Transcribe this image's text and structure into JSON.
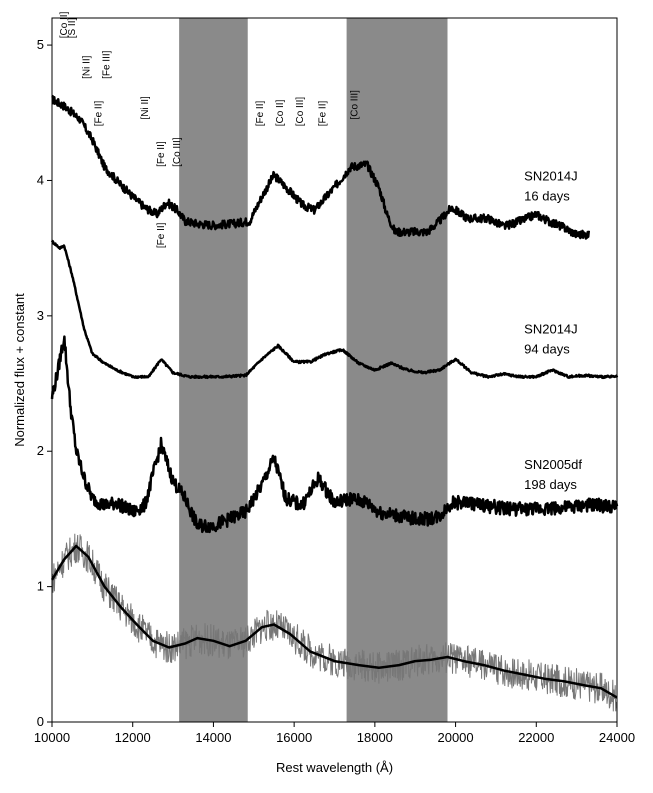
{
  "chart_data": {
    "type": "line",
    "xlabel": "Rest wavelength (Å)",
    "ylabel": "Normalized flux + constant",
    "xlim": [
      10000,
      24000
    ],
    "ylim": [
      0,
      5.2
    ],
    "xticks": [
      10000,
      12000,
      14000,
      16000,
      18000,
      20000,
      22000,
      24000
    ],
    "yticks": [
      0,
      1,
      2,
      3,
      4,
      5
    ],
    "telluric_bands": [
      [
        13150,
        14850
      ],
      [
        17300,
        19800
      ]
    ],
    "series": [
      {
        "name": "",
        "label_lines": [
          "SN2014J",
          "16 days"
        ],
        "label_position": [
          21700,
          4.0
        ],
        "x": [
          10000,
          10300,
          10700,
          11000,
          11300,
          11700,
          12000,
          12300,
          12600,
          12850,
          13100,
          13300,
          13600,
          14000,
          14500,
          14900,
          15200,
          15500,
          15800,
          16200,
          16500,
          17000,
          17400,
          17800,
          18100,
          18300,
          18500,
          19000,
          19300,
          19600,
          19900,
          20300,
          20800,
          21200,
          21600,
          22000,
          22300,
          22700,
          23000,
          23300
        ],
        "y": [
          4.6,
          4.55,
          4.45,
          4.3,
          4.1,
          3.97,
          3.88,
          3.8,
          3.75,
          3.84,
          3.78,
          3.7,
          3.68,
          3.67,
          3.68,
          3.7,
          3.88,
          4.04,
          3.95,
          3.82,
          3.78,
          3.95,
          4.1,
          4.12,
          3.95,
          3.75,
          3.62,
          3.62,
          3.62,
          3.7,
          3.8,
          3.72,
          3.72,
          3.66,
          3.7,
          3.75,
          3.7,
          3.65,
          3.6,
          3.6
        ]
      },
      {
        "name": "",
        "label_lines": [
          "SN2014J",
          "94 days"
        ],
        "label_position": [
          21700,
          2.87
        ],
        "x": [
          10000,
          10200,
          10300,
          10500,
          10800,
          11000,
          11300,
          11600,
          12000,
          12400,
          12700,
          13000,
          13400,
          13800,
          14200,
          14800,
          15200,
          15600,
          16000,
          16400,
          16800,
          17200,
          17600,
          18000,
          18400,
          18800,
          19200,
          19600,
          20000,
          20400,
          20800,
          21200,
          21600,
          22000,
          22400,
          22800,
          23200,
          23600,
          24000
        ],
        "y": [
          3.55,
          3.5,
          3.52,
          3.3,
          2.9,
          2.72,
          2.65,
          2.6,
          2.55,
          2.55,
          2.68,
          2.58,
          2.55,
          2.55,
          2.55,
          2.56,
          2.68,
          2.78,
          2.66,
          2.66,
          2.72,
          2.75,
          2.65,
          2.6,
          2.65,
          2.6,
          2.58,
          2.6,
          2.68,
          2.58,
          2.55,
          2.57,
          2.55,
          2.55,
          2.6,
          2.55,
          2.56,
          2.55,
          2.55
        ]
      },
      {
        "name": "",
        "label_lines": [
          "SN2005df",
          "198 days"
        ],
        "label_position": [
          21700,
          1.87
        ],
        "x": [
          10000,
          10150,
          10300,
          10450,
          10600,
          10800,
          11000,
          11300,
          11600,
          12000,
          12300,
          12700,
          13000,
          13300,
          13600,
          14000,
          14400,
          14800,
          15200,
          15500,
          15800,
          16200,
          16600,
          17000,
          17400,
          17800,
          18100,
          19000,
          19300,
          19600,
          19900,
          20300,
          20700,
          21200,
          21700,
          22200,
          22700,
          23200,
          23600,
          24000
        ],
        "y": [
          2.4,
          2.6,
          2.85,
          2.35,
          2.0,
          1.8,
          1.65,
          1.6,
          1.62,
          1.55,
          1.6,
          2.05,
          1.78,
          1.65,
          1.45,
          1.45,
          1.5,
          1.55,
          1.75,
          1.95,
          1.65,
          1.6,
          1.8,
          1.62,
          1.65,
          1.62,
          1.55,
          1.5,
          1.5,
          1.52,
          1.62,
          1.62,
          1.6,
          1.58,
          1.57,
          1.58,
          1.58,
          1.6,
          1.6,
          1.58
        ]
      },
      {
        "name": "",
        "label_lines": [],
        "x": [
          10000,
          10300,
          10600,
          10900,
          11300,
          11700,
          12100,
          12500,
          12900,
          13300,
          13600,
          14000,
          14400,
          14800,
          15200,
          15500,
          15900,
          16400,
          17000,
          17600,
          18100,
          18600,
          19000,
          19400,
          19800,
          20200,
          20700,
          21200,
          21700,
          22200,
          22700,
          23200,
          23600,
          24000
        ],
        "y": [
          1.05,
          1.2,
          1.3,
          1.22,
          1.0,
          0.85,
          0.72,
          0.6,
          0.55,
          0.58,
          0.62,
          0.6,
          0.56,
          0.6,
          0.7,
          0.72,
          0.65,
          0.52,
          0.45,
          0.42,
          0.4,
          0.42,
          0.45,
          0.46,
          0.48,
          0.45,
          0.42,
          0.38,
          0.35,
          0.32,
          0.3,
          0.27,
          0.25,
          0.18
        ]
      }
    ],
    "line_ids": [
      {
        "text": "[Co II]",
        "x": 10300,
        "y": 5.05
      },
      {
        "text": "[S II]",
        "x": 10500,
        "y": 5.05
      },
      {
        "text": "[Ni II]",
        "x": 10850,
        "y": 4.75
      },
      {
        "text": "[Fe III]",
        "x": 11350,
        "y": 4.75
      },
      {
        "text": "[Fe II]",
        "x": 11150,
        "y": 4.4
      },
      {
        "text": "[Ni II]",
        "x": 12300,
        "y": 4.45
      },
      {
        "text": "[Fe II]",
        "x": 12700,
        "y": 4.1
      },
      {
        "text": "[Co III]",
        "x": 13100,
        "y": 4.1
      },
      {
        "text": "[Fe II]",
        "x": 12700,
        "y": 3.5
      },
      {
        "text": "[Fe II]",
        "x": 15150,
        "y": 4.4
      },
      {
        "text": "[Co II]",
        "x": 15650,
        "y": 4.4
      },
      {
        "text": "[Co III]",
        "x": 16150,
        "y": 4.4
      },
      {
        "text": "[Fe II]",
        "x": 16700,
        "y": 4.4
      },
      {
        "text": "[Co III]",
        "x": 17500,
        "y": 4.45
      }
    ]
  }
}
